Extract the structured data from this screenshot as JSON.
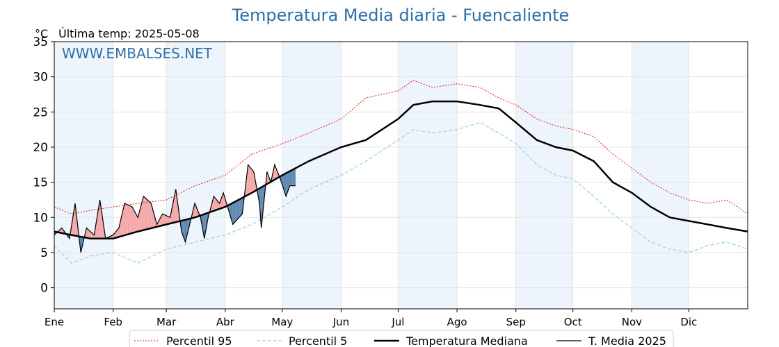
{
  "chart_data": {
    "type": "line",
    "title": "Temperatura Media diaria - Fuencaliente",
    "unit_label": "°C",
    "last_temp_label": "Última temp: 2025-05-08",
    "watermark": "WWW.EMBALSES.NET",
    "ylim": [
      -3,
      35
    ],
    "yticks": [
      0,
      5,
      10,
      15,
      20,
      25,
      30,
      35
    ],
    "xlim": [
      1,
      366
    ],
    "xlabel": "",
    "ylabel": "",
    "grid": true,
    "legend_position": "bottom",
    "months": [
      {
        "label": "Ene",
        "day": 1
      },
      {
        "label": "Feb",
        "day": 32
      },
      {
        "label": "Mar",
        "day": 60
      },
      {
        "label": "Abr",
        "day": 91
      },
      {
        "label": "May",
        "day": 121
      },
      {
        "label": "Jun",
        "day": 152
      },
      {
        "label": "Jul",
        "day": 182
      },
      {
        "label": "Ago",
        "day": 213
      },
      {
        "label": "Sep",
        "day": 244
      },
      {
        "label": "Oct",
        "day": 274
      },
      {
        "label": "Nov",
        "day": 305
      },
      {
        "label": "Dic",
        "day": 335
      }
    ],
    "colors": {
      "p95": "#e41a1c",
      "p5": "#9fd0e6",
      "median": "#000000",
      "year": "#000000",
      "above": "#f4a6a6",
      "below": "#5a86b0",
      "band": "#eef4fb",
      "title": "#2f6ea8"
    },
    "series": [
      {
        "name": "Percentil 95",
        "style": "dotted",
        "x": [
          1,
          10,
          20,
          32,
          45,
          60,
          75,
          91,
          105,
          121,
          135,
          152,
          165,
          182,
          190,
          200,
          213,
          225,
          235,
          244,
          255,
          265,
          274,
          285,
          295,
          305,
          315,
          325,
          335,
          345,
          355,
          366
        ],
        "y": [
          11.5,
          10.5,
          11.0,
          11.5,
          12.0,
          12.5,
          14.5,
          16.0,
          19.0,
          20.5,
          22.0,
          24.0,
          27.0,
          28.0,
          29.5,
          28.5,
          29.0,
          28.5,
          27.0,
          26.0,
          24.0,
          23.0,
          22.5,
          21.5,
          19.0,
          17.0,
          15.0,
          13.5,
          12.5,
          12.0,
          12.5,
          10.5
        ]
      },
      {
        "name": "Percentil 5",
        "style": "dashed",
        "x": [
          1,
          10,
          20,
          32,
          45,
          60,
          75,
          91,
          105,
          121,
          135,
          152,
          165,
          182,
          190,
          200,
          213,
          225,
          235,
          244,
          255,
          265,
          274,
          285,
          295,
          305,
          315,
          325,
          335,
          345,
          355,
          366
        ],
        "y": [
          6.0,
          3.5,
          4.5,
          5.0,
          3.5,
          5.5,
          6.5,
          7.5,
          9.0,
          11.5,
          14.0,
          16.0,
          18.0,
          21.0,
          22.5,
          22.0,
          22.5,
          23.5,
          22.0,
          20.5,
          17.5,
          16.0,
          15.5,
          13.0,
          10.5,
          8.5,
          6.5,
          5.5,
          5.0,
          6.0,
          6.5,
          5.5
        ]
      },
      {
        "name": "Temperatura Mediana",
        "style": "bold",
        "x": [
          1,
          10,
          20,
          32,
          45,
          60,
          75,
          91,
          105,
          121,
          135,
          152,
          165,
          182,
          190,
          200,
          213,
          225,
          235,
          244,
          255,
          265,
          274,
          285,
          295,
          305,
          315,
          325,
          335,
          345,
          355,
          366
        ],
        "y": [
          8.0,
          7.5,
          7.0,
          7.0,
          8.0,
          9.0,
          10.0,
          11.5,
          13.5,
          16.0,
          18.0,
          20.0,
          21.0,
          24.0,
          26.0,
          26.5,
          26.5,
          26.0,
          25.5,
          23.5,
          21.0,
          20.0,
          19.5,
          18.0,
          15.0,
          13.5,
          11.5,
          10.0,
          9.5,
          9.0,
          8.5,
          8.0
        ]
      },
      {
        "name": "T. Media 2025",
        "style": "solid",
        "x": [
          1,
          5,
          9,
          12,
          15,
          18,
          22,
          25,
          28,
          32,
          35,
          38,
          42,
          45,
          48,
          52,
          55,
          58,
          62,
          65,
          68,
          70,
          75,
          78,
          80,
          82,
          85,
          88,
          90,
          95,
          100,
          103,
          106,
          109,
          110,
          113,
          115,
          117,
          120,
          123,
          125,
          128
        ],
        "y": [
          7.5,
          8.5,
          7.0,
          12.0,
          5.0,
          8.5,
          7.5,
          12.5,
          7.0,
          7.5,
          8.5,
          12.0,
          11.5,
          10.0,
          13.0,
          12.0,
          9.0,
          10.5,
          10.0,
          14.0,
          8.0,
          6.5,
          12.0,
          10.0,
          7.0,
          10.0,
          13.0,
          12.0,
          13.5,
          9.0,
          10.5,
          17.5,
          16.5,
          12.0,
          8.5,
          16.5,
          15.0,
          17.5,
          15.5,
          13.0,
          14.5,
          14.5
        ]
      }
    ]
  }
}
